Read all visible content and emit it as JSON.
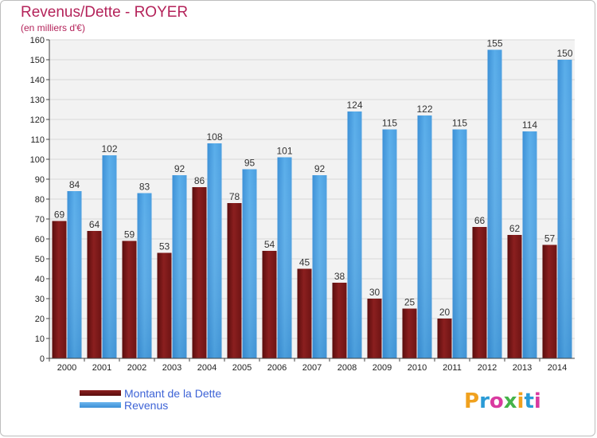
{
  "header": {
    "title": "Revenus/Dette - ROYER",
    "subtitle": "(en milliers d'€)"
  },
  "legend": {
    "debt_label": "Montant de la Dette",
    "revenue_label": "Revenus",
    "label_color": "#3d63d6"
  },
  "brand": {
    "logo_text": "Proxiti",
    "logo_colors": [
      "#f0a11e",
      "#2a9bd6",
      "#d93aa0",
      "#45b34a",
      "#f0a11e",
      "#2a9bd6",
      "#d93aa0"
    ]
  },
  "colors": {
    "debt": "#8b1f1f",
    "debt_dark": "#5a0d0d",
    "revenue": "#4a9ee0",
    "revenue_light": "#6cb6ee",
    "title": "#b4235a",
    "axis": "#444444",
    "grid": "#d8d8d8",
    "plot_bg": "#f2f2f2"
  },
  "chart_data": {
    "type": "bar",
    "title": "Revenus/Dette - ROYER",
    "subtitle": "(en milliers d'€)",
    "xlabel": "",
    "ylabel": "",
    "ylim": [
      0,
      160
    ],
    "yticks": [
      0,
      10,
      20,
      30,
      40,
      50,
      60,
      70,
      80,
      90,
      100,
      110,
      120,
      130,
      140,
      150,
      160
    ],
    "grid": true,
    "legend_position": "bottom-left",
    "categories": [
      "2000",
      "2001",
      "2002",
      "2003",
      "2004",
      "2005",
      "2006",
      "2007",
      "2008",
      "2009",
      "2010",
      "2011",
      "2012",
      "2013",
      "2014"
    ],
    "series": [
      {
        "name": "Montant de la Dette",
        "values": [
          69,
          64,
          59,
          53,
          86,
          78,
          54,
          45,
          38,
          30,
          25,
          20,
          66,
          62,
          57
        ]
      },
      {
        "name": "Revenus",
        "values": [
          84,
          102,
          83,
          92,
          108,
          95,
          101,
          92,
          124,
          115,
          122,
          115,
          155,
          114,
          150
        ]
      }
    ]
  }
}
